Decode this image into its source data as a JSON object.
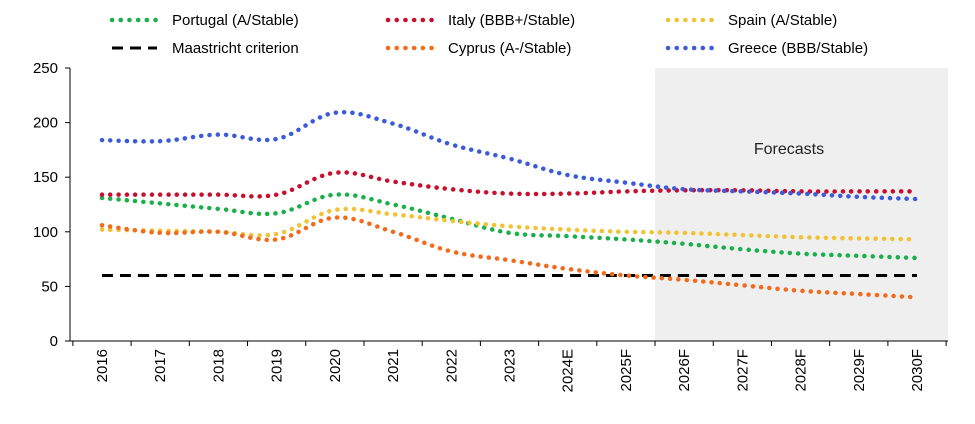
{
  "chart_data": {
    "type": "line",
    "title": "",
    "xlabel": "",
    "ylabel": "",
    "categories": [
      "2016",
      "2017",
      "2018",
      "2019",
      "2020",
      "2021",
      "2022",
      "2023",
      "2024E",
      "2025F",
      "2026F",
      "2027F",
      "2028F",
      "2029F",
      "2030F"
    ],
    "ylim": [
      0,
      250
    ],
    "yticks": [
      0,
      50,
      100,
      150,
      200,
      250
    ],
    "grid": false,
    "legend_position": "top",
    "forecast_shading": {
      "from": "2025F",
      "to": "2030F",
      "color": "#efefef"
    },
    "annotation": "Forecasts",
    "series": [
      {
        "name": "Portugal (A/Stable)",
        "color": "#1aaf4b",
        "style": "dotted",
        "values": [
          131,
          126,
          121,
          117,
          134,
          125,
          112,
          99,
          96,
          93,
          89,
          84,
          80,
          78,
          76
        ]
      },
      {
        "name": "Italy (BBB+/Stable)",
        "color": "#c8102e",
        "style": "dotted",
        "values": [
          134,
          134,
          134,
          134,
          154,
          146,
          139,
          135,
          135,
          137,
          138,
          138,
          137,
          137,
          137
        ]
      },
      {
        "name": "Spain (A/Stable)",
        "color": "#f1c232",
        "style": "dotted",
        "values": [
          102,
          101,
          100,
          98,
          120,
          116,
          110,
          105,
          102,
          100,
          99,
          97,
          95,
          94,
          93
        ]
      },
      {
        "name": "Maastricht criterion",
        "color": "#000000",
        "style": "dashed",
        "values": [
          60,
          60,
          60,
          60,
          60,
          60,
          60,
          60,
          60,
          60,
          60,
          60,
          60,
          60,
          60
        ]
      },
      {
        "name": "Cyprus (A-/Stable)",
        "color": "#f26b1d",
        "style": "dotted",
        "values": [
          106,
          99,
          100,
          93,
          113,
          100,
          82,
          74,
          66,
          60,
          56,
          51,
          46,
          43,
          40
        ]
      },
      {
        "name": "Greece (BBB/Stable)",
        "color": "#3b5bdb",
        "style": "dotted",
        "values": [
          184,
          183,
          189,
          185,
          209,
          199,
          180,
          167,
          152,
          145,
          139,
          137,
          135,
          132,
          130
        ]
      }
    ]
  }
}
